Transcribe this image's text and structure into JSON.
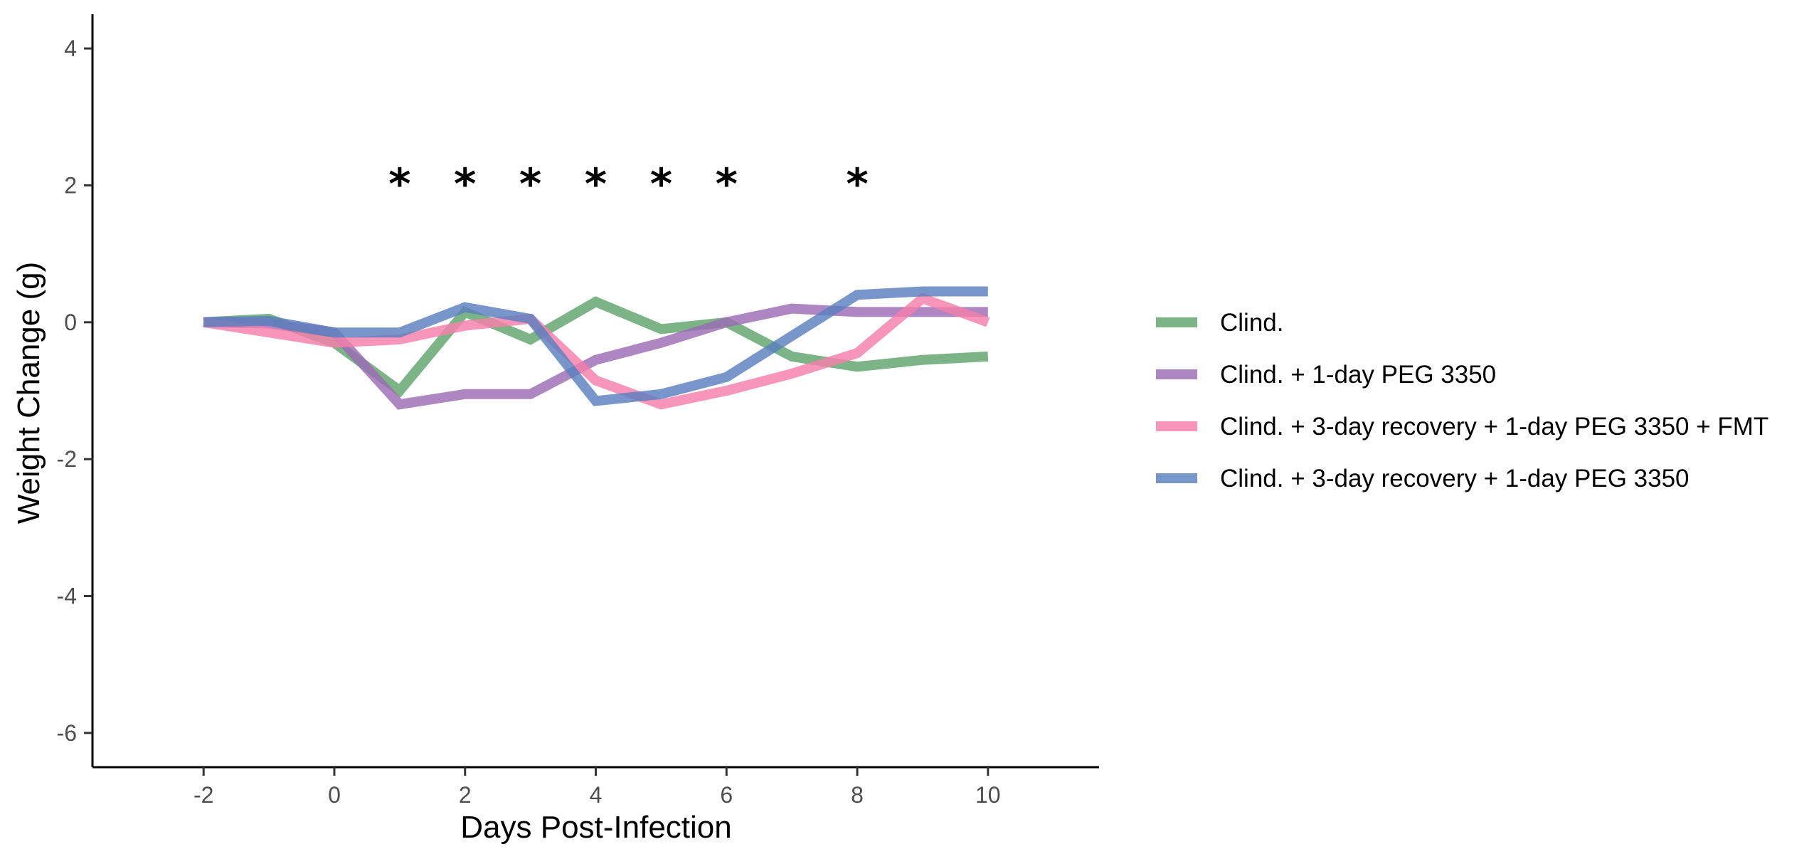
{
  "chart_data": {
    "type": "line",
    "title": "",
    "xlabel": "Days Post-Infection",
    "ylabel": "Weight Change (g)",
    "xlim": [
      -3.7,
      11.7
    ],
    "ylim": [
      -6.5,
      4.5
    ],
    "xticks": [
      -2,
      0,
      2,
      4,
      6,
      8,
      10
    ],
    "yticks": [
      -6,
      -4,
      -2,
      0,
      2,
      4
    ],
    "grid": false,
    "legend_position": "right",
    "x": [
      -2,
      -1,
      0,
      1,
      2,
      3,
      4,
      5,
      6,
      7,
      8,
      9,
      10
    ],
    "series": [
      {
        "name": "Clind.",
        "color": "#5fa46d",
        "values": [
          0,
          0.05,
          -0.3,
          -1.0,
          0.15,
          -0.25,
          0.3,
          -0.1,
          0.0,
          -0.5,
          -0.65,
          -0.55,
          -0.5
        ]
      },
      {
        "name": "Clind. + 1-day PEG 3350",
        "color": "#9b6bb5",
        "values": [
          0,
          -0.02,
          -0.15,
          -1.2,
          -1.05,
          -1.05,
          -0.55,
          -0.3,
          0.0,
          0.2,
          0.15,
          0.15,
          0.15
        ]
      },
      {
        "name": "Clind. + 3-day recovery + 1-day PEG 3350 + FMT",
        "color": "#f57fab",
        "values": [
          0,
          -0.15,
          -0.3,
          -0.25,
          -0.05,
          0.05,
          -0.85,
          -1.2,
          -1.0,
          -0.75,
          -0.45,
          0.35,
          0.0
        ]
      },
      {
        "name": "Clind. + 3-day recovery + 1-day PEG 3350",
        "color": "#5b7fbe",
        "values": [
          0,
          0.02,
          -0.15,
          -0.15,
          0.22,
          0.05,
          -1.15,
          -1.05,
          -0.8,
          -0.2,
          0.4,
          0.45,
          0.45
        ]
      }
    ],
    "annotations": [
      {
        "text": "*",
        "x": 1,
        "y": 2.1
      },
      {
        "text": "*",
        "x": 2,
        "y": 2.1
      },
      {
        "text": "*",
        "x": 3,
        "y": 2.1
      },
      {
        "text": "*",
        "x": 4,
        "y": 2.1
      },
      {
        "text": "*",
        "x": 5,
        "y": 2.1
      },
      {
        "text": "*",
        "x": 6,
        "y": 2.1
      },
      {
        "text": "*",
        "x": 8,
        "y": 2.1
      }
    ]
  }
}
